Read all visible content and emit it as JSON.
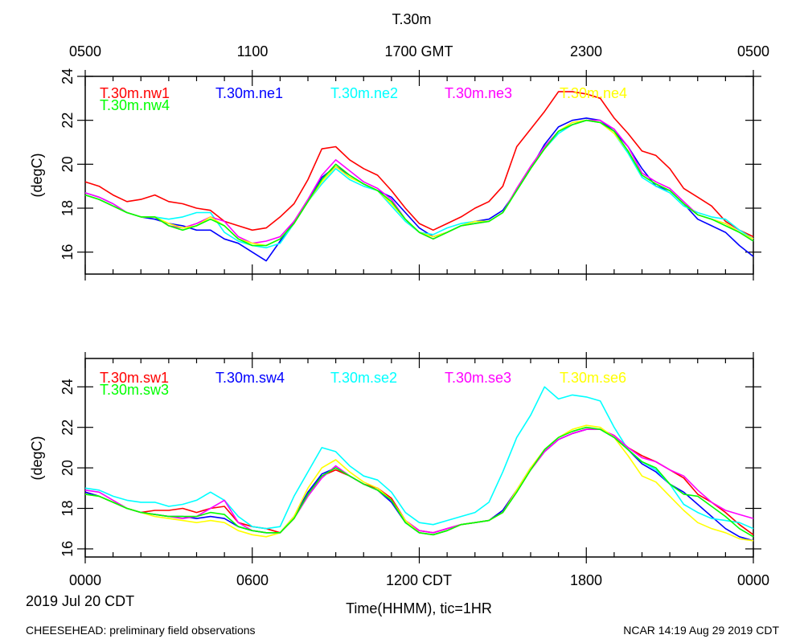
{
  "title": "T.30m",
  "top_axis_labels": [
    "0500",
    "1100",
    "1700 GMT",
    "2300",
    "0500"
  ],
  "bottom_axis_labels": [
    "0000",
    "0600",
    "1200 CDT",
    "1800",
    "0000"
  ],
  "date_label": "2019 Jul 20 CDT",
  "xlabel": "Time(HHMM), tic=1HR",
  "footer_left": "CHEESEHEAD: preliminary field observations",
  "footer_right": "NCAR 14:19 Aug 29 2019 CDT",
  "chart_data": [
    {
      "type": "line",
      "panel": "upper",
      "ylabel": "(degC)",
      "xlim": [
        0,
        24
      ],
      "ylim": [
        15,
        24
      ],
      "yticks": [
        "16",
        "18",
        "20",
        "22",
        "24"
      ],
      "ytick_values": [
        16,
        18,
        20,
        22,
        24
      ],
      "x": [
        0,
        0.5,
        1,
        1.5,
        2,
        2.5,
        3,
        3.5,
        4,
        4.5,
        5,
        5.5,
        6,
        6.5,
        7,
        7.5,
        8,
        8.5,
        9,
        9.5,
        10,
        10.5,
        11,
        11.5,
        12,
        12.5,
        13,
        13.5,
        14,
        14.5,
        15,
        15.5,
        16,
        16.5,
        17,
        17.5,
        18,
        18.5,
        19,
        19.5,
        20,
        20.5,
        21,
        21.5,
        22,
        22.5,
        23,
        23.5,
        24
      ],
      "series": [
        {
          "name": "T.30m.nw1",
          "color": "#ff0000",
          "values": [
            19.2,
            19.0,
            18.6,
            18.3,
            18.4,
            18.6,
            18.3,
            18.2,
            18.0,
            17.9,
            17.4,
            17.2,
            17.0,
            17.1,
            17.6,
            18.2,
            19.3,
            20.7,
            20.8,
            20.2,
            19.8,
            19.5,
            18.8,
            18.0,
            17.3,
            17.0,
            17.3,
            17.6,
            18.0,
            18.3,
            19.0,
            20.8,
            21.6,
            22.4,
            23.3,
            23.3,
            23.2,
            23.0,
            22.1,
            21.4,
            20.6,
            20.4,
            19.8,
            18.9,
            18.5,
            18.1,
            17.4,
            17.0,
            16.7
          ]
        },
        {
          "name": "T.30m.ne1",
          "color": "#0000ff",
          "values": [
            18.6,
            18.4,
            18.1,
            17.8,
            17.6,
            17.5,
            17.3,
            17.2,
            17.0,
            17.0,
            16.6,
            16.4,
            16.0,
            15.6,
            16.5,
            17.4,
            18.3,
            19.4,
            19.9,
            19.5,
            19.1,
            18.8,
            18.5,
            17.8,
            17.1,
            16.7,
            16.9,
            17.2,
            17.4,
            17.5,
            17.9,
            18.8,
            19.8,
            20.9,
            21.7,
            22.0,
            22.1,
            22.0,
            21.5,
            20.8,
            19.8,
            19.0,
            18.8,
            18.2,
            17.5,
            17.2,
            16.9,
            16.3,
            15.8
          ]
        },
        {
          "name": "T.30m.ne2",
          "color": "#00ffff",
          "values": [
            18.7,
            18.5,
            18.2,
            17.8,
            17.6,
            17.6,
            17.5,
            17.6,
            17.8,
            17.8,
            16.9,
            16.5,
            16.3,
            16.2,
            16.4,
            17.3,
            18.3,
            19.1,
            19.8,
            19.3,
            19.0,
            18.8,
            18.1,
            17.4,
            16.9,
            16.8,
            17.1,
            17.3,
            17.4,
            17.4,
            17.8,
            18.8,
            19.8,
            20.7,
            21.4,
            21.8,
            22.0,
            21.9,
            21.4,
            20.5,
            19.4,
            19.0,
            18.7,
            18.1,
            17.8,
            17.6,
            17.5,
            17.0,
            16.6
          ]
        },
        {
          "name": "T.30m.ne3",
          "color": "#ff00ff",
          "values": [
            18.7,
            18.5,
            18.2,
            17.8,
            17.6,
            17.6,
            17.2,
            17.1,
            17.3,
            17.6,
            17.4,
            16.7,
            16.4,
            16.5,
            16.7,
            17.4,
            18.4,
            19.5,
            20.2,
            19.7,
            19.2,
            18.9,
            18.4,
            17.5,
            16.9,
            16.6,
            16.9,
            17.2,
            17.3,
            17.4,
            17.8,
            18.9,
            19.9,
            20.8,
            21.5,
            21.8,
            22.0,
            22.0,
            21.6,
            20.8,
            19.6,
            19.2,
            18.9,
            18.3,
            17.7,
            17.5,
            17.3,
            16.9,
            16.5
          ]
        },
        {
          "name": "T.30m.ne4",
          "color": "#ffff00",
          "values": [
            18.6,
            18.4,
            18.1,
            17.8,
            17.6,
            17.6,
            17.3,
            17.1,
            17.2,
            17.6,
            17.2,
            16.6,
            16.4,
            16.3,
            16.6,
            17.3,
            18.3,
            19.2,
            19.9,
            19.4,
            19.1,
            18.8,
            18.2,
            17.5,
            16.9,
            16.7,
            16.9,
            17.2,
            17.4,
            17.4,
            17.8,
            18.8,
            19.8,
            20.7,
            21.5,
            21.9,
            22.0,
            21.9,
            21.4,
            20.6,
            19.5,
            19.1,
            18.8,
            18.2,
            17.7,
            17.5,
            17.3,
            16.9,
            16.6
          ]
        },
        {
          "name": "T.30m.nw4",
          "color": "#00ff00",
          "values": [
            18.6,
            18.4,
            18.1,
            17.8,
            17.6,
            17.6,
            17.2,
            17.0,
            17.2,
            17.5,
            17.2,
            16.6,
            16.3,
            16.3,
            16.6,
            17.3,
            18.3,
            19.3,
            20.0,
            19.5,
            19.1,
            18.8,
            18.3,
            17.5,
            16.9,
            16.6,
            16.9,
            17.2,
            17.3,
            17.4,
            17.8,
            18.8,
            19.8,
            20.7,
            21.5,
            21.8,
            22.0,
            21.9,
            21.5,
            20.6,
            19.5,
            19.1,
            18.8,
            18.2,
            17.7,
            17.5,
            17.2,
            16.9,
            16.5
          ]
        }
      ],
      "legend": [
        {
          "label": "T.30m.nw1",
          "color": "#ff0000"
        },
        {
          "label": "T.30m.ne1",
          "color": "#0000ff"
        },
        {
          "label": "T.30m.ne2",
          "color": "#00ffff"
        },
        {
          "label": "T.30m.ne3",
          "color": "#ff00ff"
        },
        {
          "label": "T.30m.ne4",
          "color": "#ffff00"
        },
        {
          "label": "T.30m.nw4",
          "color": "#00ff00"
        }
      ]
    },
    {
      "type": "line",
      "panel": "lower",
      "ylabel": "(degC)",
      "xlim": [
        0,
        24
      ],
      "ylim": [
        15.6,
        25.4
      ],
      "yticks": [
        "16",
        "18",
        "20",
        "22",
        "24"
      ],
      "ytick_values": [
        16,
        18,
        20,
        22,
        24
      ],
      "x": [
        0,
        0.5,
        1,
        1.5,
        2,
        2.5,
        3,
        3.5,
        4,
        4.5,
        5,
        5.5,
        6,
        6.5,
        7,
        7.5,
        8,
        8.5,
        9,
        9.5,
        10,
        10.5,
        11,
        11.5,
        12,
        12.5,
        13,
        13.5,
        14,
        14.5,
        15,
        15.5,
        16,
        16.5,
        17,
        17.5,
        18,
        18.5,
        19,
        19.5,
        20,
        20.5,
        21,
        21.5,
        22,
        22.5,
        23,
        23.5,
        24
      ],
      "series": [
        {
          "name": "T.30m.sw1",
          "color": "#ff0000",
          "values": [
            18.8,
            18.6,
            18.3,
            18.0,
            17.8,
            17.9,
            17.9,
            18.0,
            17.8,
            18.0,
            18.1,
            17.3,
            17.1,
            17.0,
            16.8,
            17.5,
            18.8,
            19.6,
            19.9,
            19.6,
            19.2,
            19.0,
            18.5,
            17.4,
            16.9,
            16.8,
            17.0,
            17.2,
            17.3,
            17.4,
            17.9,
            18.9,
            19.9,
            20.8,
            21.4,
            21.7,
            21.9,
            21.9,
            21.6,
            21.0,
            20.6,
            20.3,
            19.9,
            19.5,
            18.7,
            18.3,
            17.8,
            17.2,
            16.7
          ]
        },
        {
          "name": "T.30m.sw4",
          "color": "#0000ff",
          "values": [
            18.8,
            18.6,
            18.3,
            18.0,
            17.8,
            17.7,
            17.6,
            17.6,
            17.5,
            17.6,
            17.5,
            17.1,
            16.9,
            16.8,
            16.8,
            17.6,
            18.8,
            19.7,
            20.0,
            19.6,
            19.2,
            18.9,
            18.3,
            17.3,
            16.8,
            16.7,
            16.9,
            17.2,
            17.3,
            17.4,
            17.9,
            18.9,
            20.0,
            20.8,
            21.4,
            21.7,
            21.9,
            21.9,
            21.5,
            20.9,
            20.2,
            19.8,
            19.2,
            18.8,
            18.2,
            17.6,
            17.0,
            16.6,
            16.4
          ]
        },
        {
          "name": "T.30m.se2",
          "color": "#00ffff",
          "values": [
            19.0,
            18.9,
            18.6,
            18.4,
            18.3,
            18.3,
            18.1,
            18.2,
            18.4,
            18.8,
            18.4,
            17.6,
            17.1,
            17.0,
            17.1,
            18.6,
            19.8,
            21.0,
            20.8,
            20.1,
            19.6,
            19.4,
            18.8,
            17.8,
            17.3,
            17.2,
            17.4,
            17.6,
            17.8,
            18.3,
            19.8,
            21.5,
            22.6,
            24.0,
            23.4,
            23.6,
            23.5,
            23.3,
            22.0,
            20.9,
            20.3,
            19.9,
            19.2,
            18.2,
            17.8,
            17.5,
            17.4,
            17.3,
            17.0
          ]
        },
        {
          "name": "T.30m.se3",
          "color": "#ff00ff",
          "values": [
            18.9,
            18.8,
            18.4,
            18.0,
            17.8,
            17.7,
            17.6,
            17.5,
            17.6,
            18.0,
            18.4,
            17.3,
            16.9,
            16.8,
            16.8,
            17.5,
            18.6,
            19.5,
            20.1,
            19.6,
            19.2,
            18.9,
            18.4,
            17.4,
            16.9,
            16.8,
            17.0,
            17.2,
            17.3,
            17.4,
            17.8,
            18.8,
            19.9,
            20.8,
            21.4,
            21.7,
            21.9,
            21.9,
            21.6,
            21.0,
            20.5,
            20.3,
            19.9,
            19.6,
            18.9,
            18.3,
            17.9,
            17.7,
            17.5
          ]
        },
        {
          "name": "T.30m.se6",
          "color": "#ffff00",
          "values": [
            18.7,
            18.6,
            18.3,
            18.0,
            17.8,
            17.6,
            17.5,
            17.4,
            17.3,
            17.4,
            17.3,
            16.9,
            16.7,
            16.6,
            16.8,
            17.6,
            19.0,
            20.0,
            20.4,
            19.8,
            19.3,
            19.0,
            18.4,
            17.4,
            16.8,
            16.7,
            16.9,
            17.2,
            17.3,
            17.4,
            17.8,
            18.9,
            20.0,
            20.9,
            21.5,
            21.9,
            22.1,
            22.0,
            21.5,
            20.6,
            19.6,
            19.3,
            18.6,
            17.9,
            17.3,
            17.0,
            16.8,
            16.5,
            16.4
          ]
        },
        {
          "name": "T.30m.sw3",
          "color": "#00ff00",
          "values": [
            18.7,
            18.6,
            18.3,
            18.0,
            17.8,
            17.7,
            17.6,
            17.6,
            17.6,
            17.8,
            17.7,
            17.1,
            16.9,
            16.8,
            16.8,
            17.5,
            18.7,
            19.6,
            20.0,
            19.6,
            19.2,
            18.9,
            18.4,
            17.3,
            16.8,
            16.7,
            16.9,
            17.2,
            17.3,
            17.4,
            17.8,
            18.8,
            19.9,
            20.9,
            21.5,
            21.8,
            22.0,
            21.9,
            21.5,
            20.9,
            20.3,
            20.0,
            19.2,
            18.7,
            18.6,
            18.1,
            17.6,
            17.0,
            16.6
          ]
        }
      ],
      "legend": [
        {
          "label": "T.30m.sw1",
          "color": "#ff0000"
        },
        {
          "label": "T.30m.sw4",
          "color": "#0000ff"
        },
        {
          "label": "T.30m.se2",
          "color": "#00ffff"
        },
        {
          "label": "T.30m.se3",
          "color": "#ff00ff"
        },
        {
          "label": "T.30m.se6",
          "color": "#ffff00"
        },
        {
          "label": "T.30m.sw3",
          "color": "#00ff00"
        }
      ]
    }
  ]
}
